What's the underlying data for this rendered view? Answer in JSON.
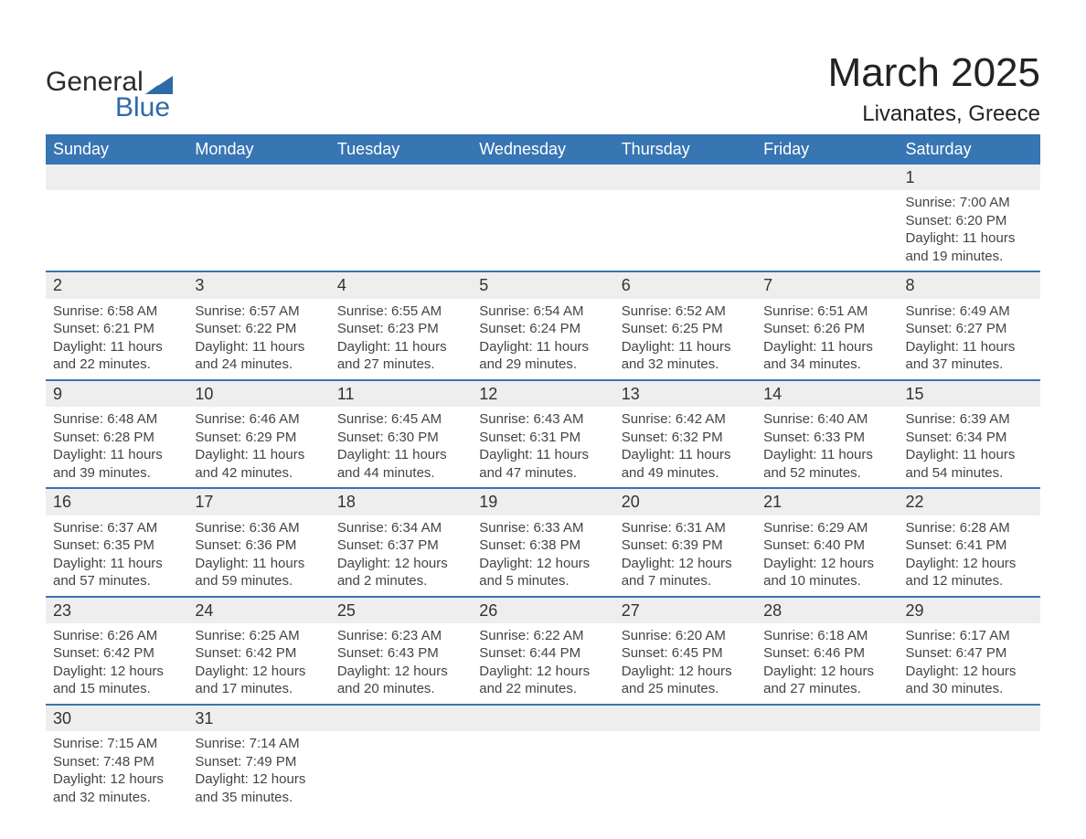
{
  "brand": {
    "name1": "General",
    "name2": "Blue",
    "accent": "#2f6aa8"
  },
  "title": "March 2025",
  "location": "Livanates, Greece",
  "colors": {
    "header_bg": "#3775b3",
    "header_text": "#ffffff",
    "daynum_bg": "#eeeeee",
    "row_border": "#3775b3",
    "text": "#444444",
    "background": "#ffffff"
  },
  "fonts": {
    "title_pt": 44,
    "location_pt": 24,
    "header_pt": 18,
    "daynum_pt": 18,
    "body_pt": 15
  },
  "columns": [
    "Sunday",
    "Monday",
    "Tuesday",
    "Wednesday",
    "Thursday",
    "Friday",
    "Saturday"
  ],
  "weeks": [
    [
      null,
      null,
      null,
      null,
      null,
      null,
      {
        "n": "1",
        "sr": "Sunrise: 7:00 AM",
        "ss": "Sunset: 6:20 PM",
        "d1": "Daylight: 11 hours",
        "d2": "and 19 minutes."
      }
    ],
    [
      {
        "n": "2",
        "sr": "Sunrise: 6:58 AM",
        "ss": "Sunset: 6:21 PM",
        "d1": "Daylight: 11 hours",
        "d2": "and 22 minutes."
      },
      {
        "n": "3",
        "sr": "Sunrise: 6:57 AM",
        "ss": "Sunset: 6:22 PM",
        "d1": "Daylight: 11 hours",
        "d2": "and 24 minutes."
      },
      {
        "n": "4",
        "sr": "Sunrise: 6:55 AM",
        "ss": "Sunset: 6:23 PM",
        "d1": "Daylight: 11 hours",
        "d2": "and 27 minutes."
      },
      {
        "n": "5",
        "sr": "Sunrise: 6:54 AM",
        "ss": "Sunset: 6:24 PM",
        "d1": "Daylight: 11 hours",
        "d2": "and 29 minutes."
      },
      {
        "n": "6",
        "sr": "Sunrise: 6:52 AM",
        "ss": "Sunset: 6:25 PM",
        "d1": "Daylight: 11 hours",
        "d2": "and 32 minutes."
      },
      {
        "n": "7",
        "sr": "Sunrise: 6:51 AM",
        "ss": "Sunset: 6:26 PM",
        "d1": "Daylight: 11 hours",
        "d2": "and 34 minutes."
      },
      {
        "n": "8",
        "sr": "Sunrise: 6:49 AM",
        "ss": "Sunset: 6:27 PM",
        "d1": "Daylight: 11 hours",
        "d2": "and 37 minutes."
      }
    ],
    [
      {
        "n": "9",
        "sr": "Sunrise: 6:48 AM",
        "ss": "Sunset: 6:28 PM",
        "d1": "Daylight: 11 hours",
        "d2": "and 39 minutes."
      },
      {
        "n": "10",
        "sr": "Sunrise: 6:46 AM",
        "ss": "Sunset: 6:29 PM",
        "d1": "Daylight: 11 hours",
        "d2": "and 42 minutes."
      },
      {
        "n": "11",
        "sr": "Sunrise: 6:45 AM",
        "ss": "Sunset: 6:30 PM",
        "d1": "Daylight: 11 hours",
        "d2": "and 44 minutes."
      },
      {
        "n": "12",
        "sr": "Sunrise: 6:43 AM",
        "ss": "Sunset: 6:31 PM",
        "d1": "Daylight: 11 hours",
        "d2": "and 47 minutes."
      },
      {
        "n": "13",
        "sr": "Sunrise: 6:42 AM",
        "ss": "Sunset: 6:32 PM",
        "d1": "Daylight: 11 hours",
        "d2": "and 49 minutes."
      },
      {
        "n": "14",
        "sr": "Sunrise: 6:40 AM",
        "ss": "Sunset: 6:33 PM",
        "d1": "Daylight: 11 hours",
        "d2": "and 52 minutes."
      },
      {
        "n": "15",
        "sr": "Sunrise: 6:39 AM",
        "ss": "Sunset: 6:34 PM",
        "d1": "Daylight: 11 hours",
        "d2": "and 54 minutes."
      }
    ],
    [
      {
        "n": "16",
        "sr": "Sunrise: 6:37 AM",
        "ss": "Sunset: 6:35 PM",
        "d1": "Daylight: 11 hours",
        "d2": "and 57 minutes."
      },
      {
        "n": "17",
        "sr": "Sunrise: 6:36 AM",
        "ss": "Sunset: 6:36 PM",
        "d1": "Daylight: 11 hours",
        "d2": "and 59 minutes."
      },
      {
        "n": "18",
        "sr": "Sunrise: 6:34 AM",
        "ss": "Sunset: 6:37 PM",
        "d1": "Daylight: 12 hours",
        "d2": "and 2 minutes."
      },
      {
        "n": "19",
        "sr": "Sunrise: 6:33 AM",
        "ss": "Sunset: 6:38 PM",
        "d1": "Daylight: 12 hours",
        "d2": "and 5 minutes."
      },
      {
        "n": "20",
        "sr": "Sunrise: 6:31 AM",
        "ss": "Sunset: 6:39 PM",
        "d1": "Daylight: 12 hours",
        "d2": "and 7 minutes."
      },
      {
        "n": "21",
        "sr": "Sunrise: 6:29 AM",
        "ss": "Sunset: 6:40 PM",
        "d1": "Daylight: 12 hours",
        "d2": "and 10 minutes."
      },
      {
        "n": "22",
        "sr": "Sunrise: 6:28 AM",
        "ss": "Sunset: 6:41 PM",
        "d1": "Daylight: 12 hours",
        "d2": "and 12 minutes."
      }
    ],
    [
      {
        "n": "23",
        "sr": "Sunrise: 6:26 AM",
        "ss": "Sunset: 6:42 PM",
        "d1": "Daylight: 12 hours",
        "d2": "and 15 minutes."
      },
      {
        "n": "24",
        "sr": "Sunrise: 6:25 AM",
        "ss": "Sunset: 6:42 PM",
        "d1": "Daylight: 12 hours",
        "d2": "and 17 minutes."
      },
      {
        "n": "25",
        "sr": "Sunrise: 6:23 AM",
        "ss": "Sunset: 6:43 PM",
        "d1": "Daylight: 12 hours",
        "d2": "and 20 minutes."
      },
      {
        "n": "26",
        "sr": "Sunrise: 6:22 AM",
        "ss": "Sunset: 6:44 PM",
        "d1": "Daylight: 12 hours",
        "d2": "and 22 minutes."
      },
      {
        "n": "27",
        "sr": "Sunrise: 6:20 AM",
        "ss": "Sunset: 6:45 PM",
        "d1": "Daylight: 12 hours",
        "d2": "and 25 minutes."
      },
      {
        "n": "28",
        "sr": "Sunrise: 6:18 AM",
        "ss": "Sunset: 6:46 PM",
        "d1": "Daylight: 12 hours",
        "d2": "and 27 minutes."
      },
      {
        "n": "29",
        "sr": "Sunrise: 6:17 AM",
        "ss": "Sunset: 6:47 PM",
        "d1": "Daylight: 12 hours",
        "d2": "and 30 minutes."
      }
    ],
    [
      {
        "n": "30",
        "sr": "Sunrise: 7:15 AM",
        "ss": "Sunset: 7:48 PM",
        "d1": "Daylight: 12 hours",
        "d2": "and 32 minutes."
      },
      {
        "n": "31",
        "sr": "Sunrise: 7:14 AM",
        "ss": "Sunset: 7:49 PM",
        "d1": "Daylight: 12 hours",
        "d2": "and 35 minutes."
      },
      null,
      null,
      null,
      null,
      null
    ]
  ]
}
